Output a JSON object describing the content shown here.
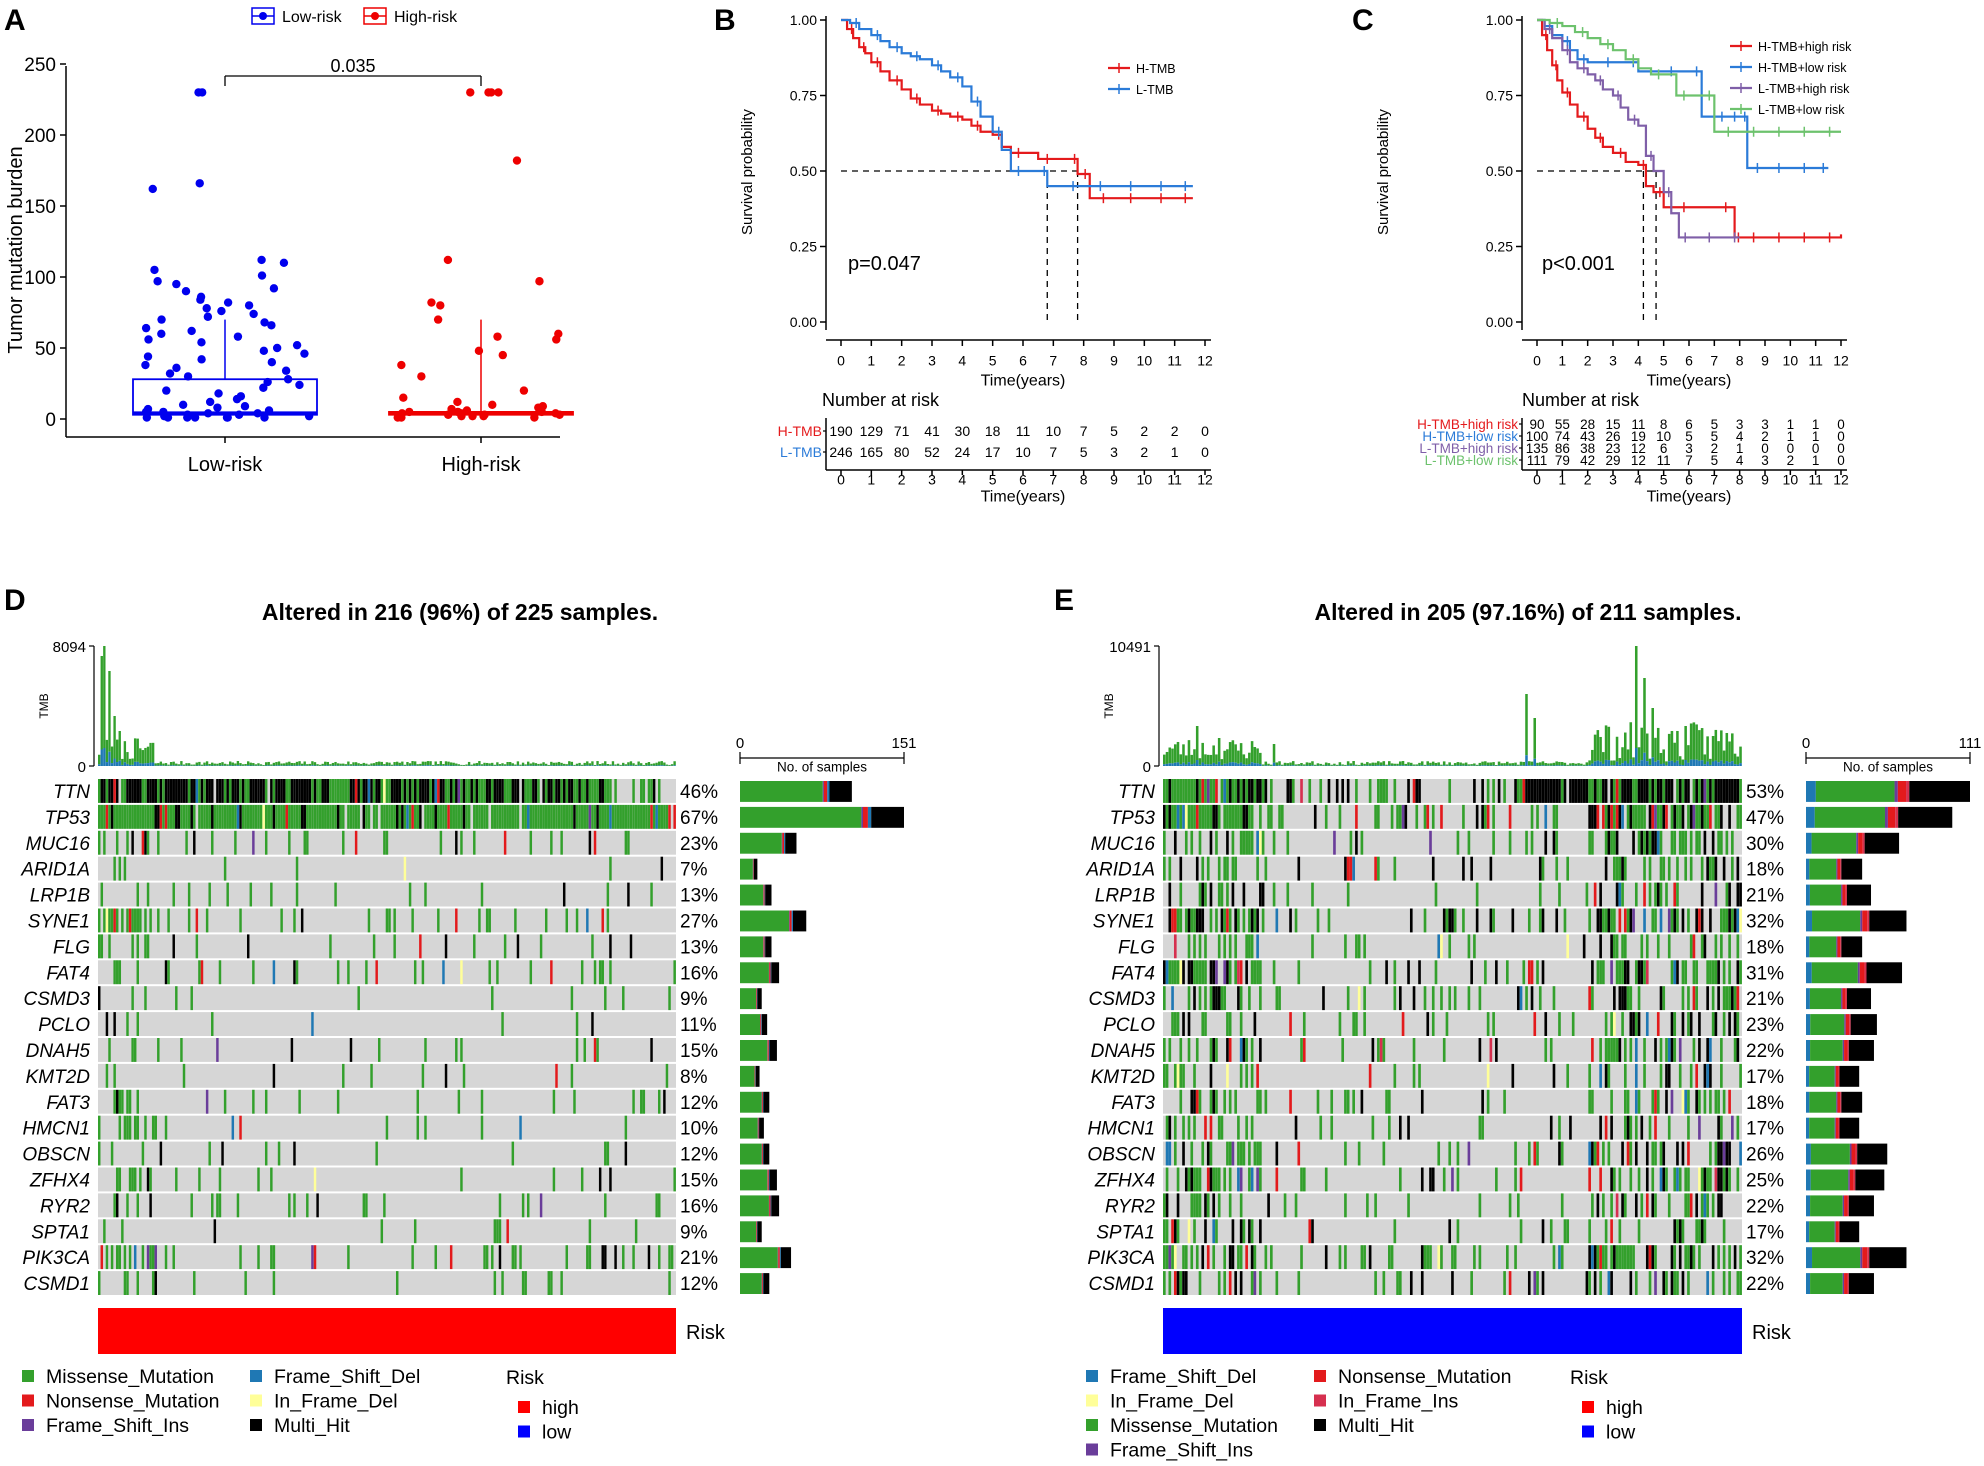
{
  "colors": {
    "low": "#0000ee",
    "high": "#ee0000",
    "htmb": "#e41a1c",
    "ltmb": "#2b7bd8",
    "k_hh": "#e41a1c",
    "k_hl": "#2b7bd8",
    "k_lh": "#7f5fa8",
    "k_ll": "#6dc26d",
    "missense": "#33a02c",
    "nonsense": "#e31a1c",
    "fs_ins": "#6a3d9a",
    "fs_del": "#1f78b4",
    "if_del": "#ffff99",
    "if_ins": "#d6304f",
    "multi": "#000000",
    "grey": "#d6d6d6",
    "risk_high": "#ff0000",
    "risk_low": "#0000ff"
  },
  "chart_data": [
    {
      "panel": "A",
      "type": "scatter",
      "legend": [
        "Low-risk",
        "High-risk"
      ],
      "ylabel": "Tumor mutation burden",
      "ylim": [
        0,
        250
      ],
      "yticks": [
        "0",
        "50",
        "100",
        "150",
        "200",
        "250"
      ],
      "categories": [
        "Low-risk",
        "High-risk"
      ],
      "pvalue": "0.035",
      "boxes": [
        {
          "group": "Low-risk",
          "q1": 3,
          "median": 4,
          "q3": 28
        },
        {
          "group": "High-risk",
          "q1": 3,
          "median": 4,
          "q3": 5
        }
      ],
      "low_points": [
        230,
        230,
        166,
        162,
        112,
        110,
        105,
        101,
        97,
        95,
        92,
        90,
        86,
        84,
        82,
        80,
        78,
        76,
        74,
        72,
        70,
        68,
        66,
        64,
        62,
        60,
        58,
        56,
        54,
        52,
        50,
        48,
        46,
        44,
        42,
        40,
        38,
        36,
        34,
        32,
        30,
        28,
        26,
        24,
        22,
        20,
        18,
        16,
        14,
        12,
        10,
        9,
        8,
        7,
        6,
        5,
        5,
        4,
        4,
        3,
        3,
        2,
        2,
        1,
        1,
        1,
        1,
        1,
        1,
        1
      ],
      "high_points": [
        230,
        230,
        230,
        230,
        182,
        112,
        97,
        82,
        80,
        70,
        60,
        58,
        56,
        48,
        45,
        38,
        30,
        20,
        15,
        12,
        10,
        9,
        8,
        7,
        6,
        5,
        5,
        5,
        4,
        4,
        4,
        3,
        3,
        3,
        2,
        2,
        2,
        1,
        1,
        1
      ]
    },
    {
      "panel": "B",
      "type": "line",
      "series": [
        {
          "name": "H-TMB",
          "x": [
            0,
            0.2,
            0.4,
            0.6,
            0.8,
            1,
            1.3,
            1.6,
            2,
            2.3,
            2.6,
            3,
            3.3,
            3.6,
            4,
            4.3,
            4.6,
            5,
            5.3,
            5.6,
            6,
            6.5,
            7,
            7.5,
            7.8,
            8.2,
            9,
            10,
            11,
            11.6
          ],
          "y": [
            1,
            0.97,
            0.94,
            0.91,
            0.89,
            0.86,
            0.83,
            0.8,
            0.77,
            0.74,
            0.72,
            0.7,
            0.69,
            0.68,
            0.67,
            0.65,
            0.63,
            0.62,
            0.58,
            0.56,
            0.56,
            0.54,
            0.54,
            0.54,
            0.49,
            0.41,
            0.41,
            0.41,
            0.41,
            0.41
          ]
        },
        {
          "name": "L-TMB",
          "x": [
            0,
            0.3,
            0.6,
            1,
            1.3,
            1.6,
            2,
            2.3,
            2.6,
            3,
            3.3,
            3.6,
            4,
            4.3,
            4.6,
            5,
            5.3,
            5.6,
            6,
            6.5,
            6.8,
            7.2,
            8,
            9,
            10,
            11,
            11.6
          ],
          "y": [
            1,
            0.99,
            0.97,
            0.95,
            0.93,
            0.91,
            0.89,
            0.88,
            0.87,
            0.85,
            0.83,
            0.81,
            0.78,
            0.73,
            0.68,
            0.63,
            0.57,
            0.5,
            0.5,
            0.5,
            0.45,
            0.45,
            0.45,
            0.45,
            0.45,
            0.45,
            0.45
          ]
        }
      ],
      "pvalue": "p=0.047",
      "ylabel": "Survival probability",
      "xlabel": "Time(years)",
      "yticks": [
        "0.00",
        "0.25",
        "0.50",
        "0.75",
        "1.00"
      ],
      "xticks": [
        "0",
        "1",
        "2",
        "3",
        "4",
        "5",
        "6",
        "7",
        "8",
        "9",
        "10",
        "11",
        "12"
      ],
      "xlim": [
        0,
        12
      ],
      "ylim": [
        0,
        1
      ],
      "median_times": [
        6.8,
        7.8
      ],
      "risk_title": "Number at risk",
      "risk_table": [
        {
          "name": "H-TMB",
          "counts": [
            "190",
            "129",
            "71",
            "41",
            "30",
            "18",
            "11",
            "10",
            "7",
            "5",
            "2",
            "2",
            "0"
          ]
        },
        {
          "name": "L-TMB",
          "counts": [
            "246",
            "165",
            "80",
            "52",
            "24",
            "17",
            "10",
            "7",
            "5",
            "3",
            "2",
            "1",
            "0"
          ]
        }
      ]
    },
    {
      "panel": "C",
      "type": "line",
      "series": [
        {
          "name": "H-TMB+high risk",
          "x": [
            0,
            0.2,
            0.4,
            0.6,
            0.8,
            1,
            1.3,
            1.6,
            2,
            2.3,
            2.6,
            3,
            3.5,
            4,
            4.3,
            4.6,
            5,
            5.5,
            6,
            7,
            7.8,
            8,
            9,
            10,
            11,
            12
          ],
          "y": [
            1,
            0.95,
            0.9,
            0.85,
            0.8,
            0.76,
            0.72,
            0.68,
            0.64,
            0.61,
            0.58,
            0.56,
            0.53,
            0.52,
            0.45,
            0.43,
            0.38,
            0.38,
            0.38,
            0.38,
            0.28,
            0.28,
            0.28,
            0.28,
            0.28,
            0.29
          ]
        },
        {
          "name": "H-TMB+low risk",
          "x": [
            0,
            0.3,
            0.6,
            1,
            1.3,
            1.6,
            2,
            2.5,
            3,
            3.5,
            4,
            5,
            5.5,
            6,
            6.5,
            7,
            7.5,
            8,
            8.3,
            9,
            10,
            11,
            11.5
          ],
          "y": [
            1,
            0.98,
            0.95,
            0.93,
            0.9,
            0.87,
            0.86,
            0.86,
            0.86,
            0.86,
            0.83,
            0.83,
            0.83,
            0.83,
            0.68,
            0.68,
            0.68,
            0.68,
            0.51,
            0.51,
            0.51,
            0.51,
            0.51
          ]
        },
        {
          "name": "L-TMB+high risk",
          "x": [
            0,
            0.3,
            0.6,
            1,
            1.3,
            1.6,
            2,
            2.3,
            2.6,
            3,
            3.3,
            3.6,
            4,
            4.3,
            4.6,
            5,
            5.3,
            5.6,
            6,
            6.5,
            7,
            7.5,
            8
          ],
          "y": [
            1,
            0.97,
            0.94,
            0.9,
            0.86,
            0.84,
            0.82,
            0.8,
            0.77,
            0.75,
            0.71,
            0.67,
            0.65,
            0.55,
            0.5,
            0.43,
            0.36,
            0.28,
            0.28,
            0.28,
            0.28,
            0.28,
            0.28
          ]
        },
        {
          "name": "L-TMB+low risk",
          "x": [
            0,
            0.5,
            1,
            1.5,
            2,
            2.5,
            3,
            3.5,
            4,
            4.5,
            5,
            5.5,
            6,
            6.5,
            7,
            8,
            9,
            10,
            11,
            12
          ],
          "y": [
            1,
            0.99,
            0.98,
            0.96,
            0.94,
            0.92,
            0.9,
            0.87,
            0.84,
            0.82,
            0.82,
            0.75,
            0.75,
            0.75,
            0.63,
            0.63,
            0.63,
            0.63,
            0.63,
            0.63
          ]
        }
      ],
      "pvalue": "p<0.001",
      "ylabel": "Survival probability",
      "xlabel": "Time(years)",
      "yticks": [
        "0.00",
        "0.25",
        "0.50",
        "0.75",
        "1.00"
      ],
      "xticks": [
        "0",
        "1",
        "2",
        "3",
        "4",
        "5",
        "6",
        "7",
        "8",
        "9",
        "10",
        "11",
        "12"
      ],
      "xlim": [
        0,
        12
      ],
      "ylim": [
        0,
        1
      ],
      "median_times": [
        4.2,
        4.7
      ],
      "risk_title": "Number at risk",
      "risk_table": [
        {
          "name": "H-TMB+high risk",
          "counts": [
            "90",
            "55",
            "28",
            "15",
            "11",
            "8",
            "6",
            "5",
            "3",
            "3",
            "1",
            "1",
            "0"
          ]
        },
        {
          "name": "H-TMB+low risk",
          "counts": [
            "100",
            "74",
            "43",
            "26",
            "19",
            "10",
            "5",
            "5",
            "4",
            "2",
            "1",
            "1",
            "0"
          ]
        },
        {
          "name": "L-TMB+high risk",
          "counts": [
            "135",
            "86",
            "38",
            "23",
            "12",
            "6",
            "3",
            "2",
            "1",
            "0",
            "0",
            "0",
            "0"
          ]
        },
        {
          "name": "L-TMB+low risk",
          "counts": [
            "111",
            "79",
            "42",
            "29",
            "12",
            "11",
            "7",
            "5",
            "4",
            "3",
            "2",
            "1",
            "0"
          ]
        }
      ]
    },
    {
      "panel": "D",
      "type": "heatmap",
      "title": "Altered in 216 (96%) of 225 samples.",
      "tmb_label": "TMB",
      "tmb_max": "8094",
      "tmb_zero": "0",
      "barplot_title": "No. of samples",
      "bar_axis": [
        "0",
        "151"
      ],
      "bar_max": 151,
      "genes": [
        "TTN",
        "TP53",
        "MUC16",
        "ARID1A",
        "LRP1B",
        "SYNE1",
        "FLG",
        "FAT4",
        "CSMD3",
        "PCLO",
        "DNAH5",
        "KMT2D",
        "FAT3",
        "HMCN1",
        "OBSCN",
        "ZFHX4",
        "RYR2",
        "SPTA1",
        "PIK3CA",
        "CSMD1"
      ],
      "percents": [
        "46%",
        "67%",
        "23%",
        "7%",
        "13%",
        "27%",
        "13%",
        "16%",
        "9%",
        "11%",
        "15%",
        "8%",
        "12%",
        "10%",
        "12%",
        "15%",
        "16%",
        "9%",
        "21%",
        "12%"
      ],
      "freq": [
        0.46,
        0.67,
        0.23,
        0.07,
        0.13,
        0.27,
        0.13,
        0.16,
        0.09,
        0.11,
        0.15,
        0.08,
        0.12,
        0.1,
        0.12,
        0.15,
        0.16,
        0.09,
        0.21,
        0.12
      ],
      "counts": [
        103,
        151,
        52,
        16,
        29,
        61,
        29,
        36,
        20,
        25,
        34,
        18,
        27,
        22,
        27,
        34,
        36,
        20,
        47,
        27
      ],
      "samples": 225,
      "risk": "high",
      "risk_label": "Risk",
      "legend_columns": [
        [
          "Missense_Mutation",
          "Nonsense_Mutation",
          "Frame_Shift_Ins"
        ],
        [
          "Frame_Shift_Del",
          "In_Frame_Del",
          "Multi_Hit"
        ]
      ],
      "legend_keys": [
        [
          "missense",
          "nonsense",
          "fs_ins"
        ],
        [
          "fs_del",
          "if_del",
          "multi"
        ]
      ],
      "risk_legend": {
        "title": "Risk",
        "items": [
          "high",
          "low"
        ]
      }
    },
    {
      "panel": "E",
      "type": "heatmap",
      "title": "Altered in 205 (97.16%) of 211 samples.",
      "tmb_label": "TMB",
      "tmb_max": "10491",
      "tmb_zero": "0",
      "barplot_title": "No. of samples",
      "bar_axis": [
        "0",
        "111"
      ],
      "bar_max": 111,
      "genes": [
        "TTN",
        "TP53",
        "MUC16",
        "ARID1A",
        "LRP1B",
        "SYNE1",
        "FLG",
        "FAT4",
        "CSMD3",
        "PCLO",
        "DNAH5",
        "KMT2D",
        "FAT3",
        "HMCN1",
        "OBSCN",
        "ZFHX4",
        "RYR2",
        "SPTA1",
        "PIK3CA",
        "CSMD1"
      ],
      "percents": [
        "53%",
        "47%",
        "30%",
        "18%",
        "21%",
        "32%",
        "18%",
        "31%",
        "21%",
        "23%",
        "22%",
        "17%",
        "18%",
        "17%",
        "26%",
        "25%",
        "22%",
        "17%",
        "32%",
        "22%"
      ],
      "freq": [
        0.53,
        0.47,
        0.3,
        0.18,
        0.21,
        0.32,
        0.18,
        0.31,
        0.21,
        0.23,
        0.22,
        0.17,
        0.18,
        0.17,
        0.26,
        0.25,
        0.22,
        0.17,
        0.32,
        0.22
      ],
      "counts": [
        111,
        99,
        63,
        38,
        44,
        68,
        38,
        65,
        44,
        48,
        46,
        36,
        38,
        36,
        55,
        53,
        46,
        36,
        68,
        46
      ],
      "samples": 211,
      "risk": "low",
      "risk_label": "Risk",
      "legend_columns": [
        [
          "Frame_Shift_Del",
          "In_Frame_Del",
          "Missense_Mutation",
          "Frame_Shift_Ins"
        ],
        [
          "Nonsense_Mutation",
          "In_Frame_Ins",
          "Multi_Hit"
        ]
      ],
      "legend_keys": [
        [
          "fs_del",
          "if_del",
          "missense",
          "fs_ins"
        ],
        [
          "nonsense",
          "if_ins",
          "multi"
        ]
      ],
      "risk_legend": {
        "title": "Risk",
        "items": [
          "high",
          "low"
        ]
      }
    }
  ]
}
